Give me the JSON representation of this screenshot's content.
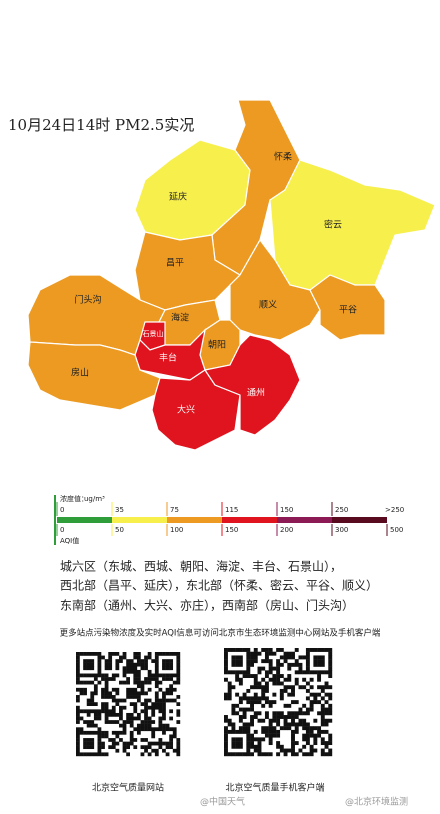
{
  "map": {
    "title": "10月24日14时 PM2.5实况",
    "districts": [
      {
        "name": "延庆",
        "color": "#f7ef4c"
      },
      {
        "name": "怀柔",
        "color": "#ec9a22"
      },
      {
        "name": "密云",
        "color": "#f7ef4c"
      },
      {
        "name": "昌平",
        "color": "#ec9a22"
      },
      {
        "name": "门头沟",
        "color": "#ec9a22"
      },
      {
        "name": "海淀",
        "color": "#ec9a22"
      },
      {
        "name": "顺义",
        "color": "#ec9a22"
      },
      {
        "name": "平谷",
        "color": "#ec9a22"
      },
      {
        "name": "朝阳",
        "color": "#ec9a22"
      },
      {
        "name": "石景山",
        "color": "#e0141e"
      },
      {
        "name": "丰台",
        "color": "#e0141e"
      },
      {
        "name": "房山",
        "color": "#ec9a22"
      },
      {
        "name": "大兴",
        "color": "#e0141e"
      },
      {
        "name": "通州",
        "color": "#e0141e"
      }
    ]
  },
  "legend": {
    "pm25_label": "浓度值：",
    "unit": "ug/m³",
    "pm25_ticks": [
      0,
      35,
      75,
      115,
      150,
      250
    ],
    "pm25_overflow": ">250",
    "aqi_label": "AQI值",
    "aqi_ticks": [
      0,
      50,
      100,
      150,
      200,
      300,
      500
    ],
    "colors": [
      "#2f9e3a",
      "#f7ef4c",
      "#ec9a22",
      "#e0141e",
      "#8c1a55",
      "#5a0a1e"
    ]
  },
  "regions": [
    "城六区（东城、西城、朝阳、海淀、丰台、石景山），",
    "西北部（昌平、延庆），东北部（怀柔、密云、平谷、顺义）",
    "东南部（通州、大兴、亦庄），西南部（房山、门头沟）"
  ],
  "note": "更多站点污染物浓度及实时AQI信息可访问北京市生态环境监测中心网站及手机客户端",
  "qr_captions": [
    "北京空气质量网站",
    "北京空气质量手机客户端"
  ],
  "watermarks": [
    "@中国天气",
    "@北京环境监测"
  ]
}
